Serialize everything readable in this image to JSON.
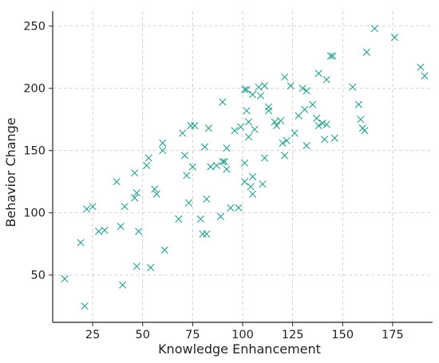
{
  "chart_data": {
    "type": "scatter",
    "title": "",
    "xlabel": "Knowledge Enhancement",
    "ylabel": "Behavior Change",
    "xlim": [
      5,
      195
    ],
    "ylim": [
      12,
      262
    ],
    "xticks": [
      25,
      50,
      75,
      100,
      125,
      150,
      175
    ],
    "yticks": [
      50,
      100,
      150,
      200,
      250
    ],
    "grid": true,
    "marker": "x",
    "color": "#2a9d8f",
    "points": [
      [
        11,
        47
      ],
      [
        19,
        76
      ],
      [
        21,
        25
      ],
      [
        22,
        103
      ],
      [
        25,
        105
      ],
      [
        28,
        85
      ],
      [
        31,
        86
      ],
      [
        37,
        125
      ],
      [
        39,
        89
      ],
      [
        40,
        42
      ],
      [
        41,
        105
      ],
      [
        46,
        132
      ],
      [
        46,
        112
      ],
      [
        47,
        116
      ],
      [
        47,
        57
      ],
      [
        48,
        85
      ],
      [
        52,
        138
      ],
      [
        53,
        144
      ],
      [
        54,
        56
      ],
      [
        56,
        119
      ],
      [
        57,
        115
      ],
      [
        60,
        156
      ],
      [
        60,
        150
      ],
      [
        61,
        70
      ],
      [
        68,
        95
      ],
      [
        70,
        164
      ],
      [
        71,
        146
      ],
      [
        72,
        130
      ],
      [
        73,
        108
      ],
      [
        74,
        170
      ],
      [
        75,
        137
      ],
      [
        76,
        170
      ],
      [
        79,
        95
      ],
      [
        80,
        83
      ],
      [
        81,
        153
      ],
      [
        82,
        111
      ],
      [
        82,
        83
      ],
      [
        83,
        168
      ],
      [
        84,
        137
      ],
      [
        87,
        138
      ],
      [
        89,
        97
      ],
      [
        90,
        141
      ],
      [
        90,
        189
      ],
      [
        91,
        141
      ],
      [
        92,
        152
      ],
      [
        92,
        135
      ],
      [
        94,
        104
      ],
      [
        96,
        166
      ],
      [
        98,
        104
      ],
      [
        99,
        169
      ],
      [
        101,
        140
      ],
      [
        101,
        125
      ],
      [
        101,
        199
      ],
      [
        102,
        199
      ],
      [
        102,
        182
      ],
      [
        103,
        161
      ],
      [
        103,
        173
      ],
      [
        104,
        121
      ],
      [
        105,
        195
      ],
      [
        105,
        129
      ],
      [
        105,
        115
      ],
      [
        106,
        167
      ],
      [
        108,
        201
      ],
      [
        109,
        194
      ],
      [
        110,
        123
      ],
      [
        111,
        144
      ],
      [
        111,
        202
      ],
      [
        113,
        182
      ],
      [
        113,
        185
      ],
      [
        116,
        173
      ],
      [
        117,
        170
      ],
      [
        119,
        174
      ],
      [
        120,
        156
      ],
      [
        121,
        209
      ],
      [
        121,
        146
      ],
      [
        122,
        158
      ],
      [
        124,
        202
      ],
      [
        126,
        164
      ],
      [
        128,
        178
      ],
      [
        130,
        200
      ],
      [
        131,
        183
      ],
      [
        132,
        154
      ],
      [
        132,
        198
      ],
      [
        135,
        187
      ],
      [
        137,
        176
      ],
      [
        138,
        212
      ],
      [
        138,
        170
      ],
      [
        140,
        172
      ],
      [
        141,
        159
      ],
      [
        142,
        207
      ],
      [
        142,
        171
      ],
      [
        144,
        226
      ],
      [
        145,
        226
      ],
      [
        146,
        160
      ],
      [
        155,
        201
      ],
      [
        158,
        187
      ],
      [
        159,
        175
      ],
      [
        160,
        168
      ],
      [
        161,
        166
      ],
      [
        162,
        229
      ],
      [
        166,
        248
      ],
      [
        176,
        241
      ],
      [
        189,
        217
      ],
      [
        191,
        210
      ]
    ]
  }
}
